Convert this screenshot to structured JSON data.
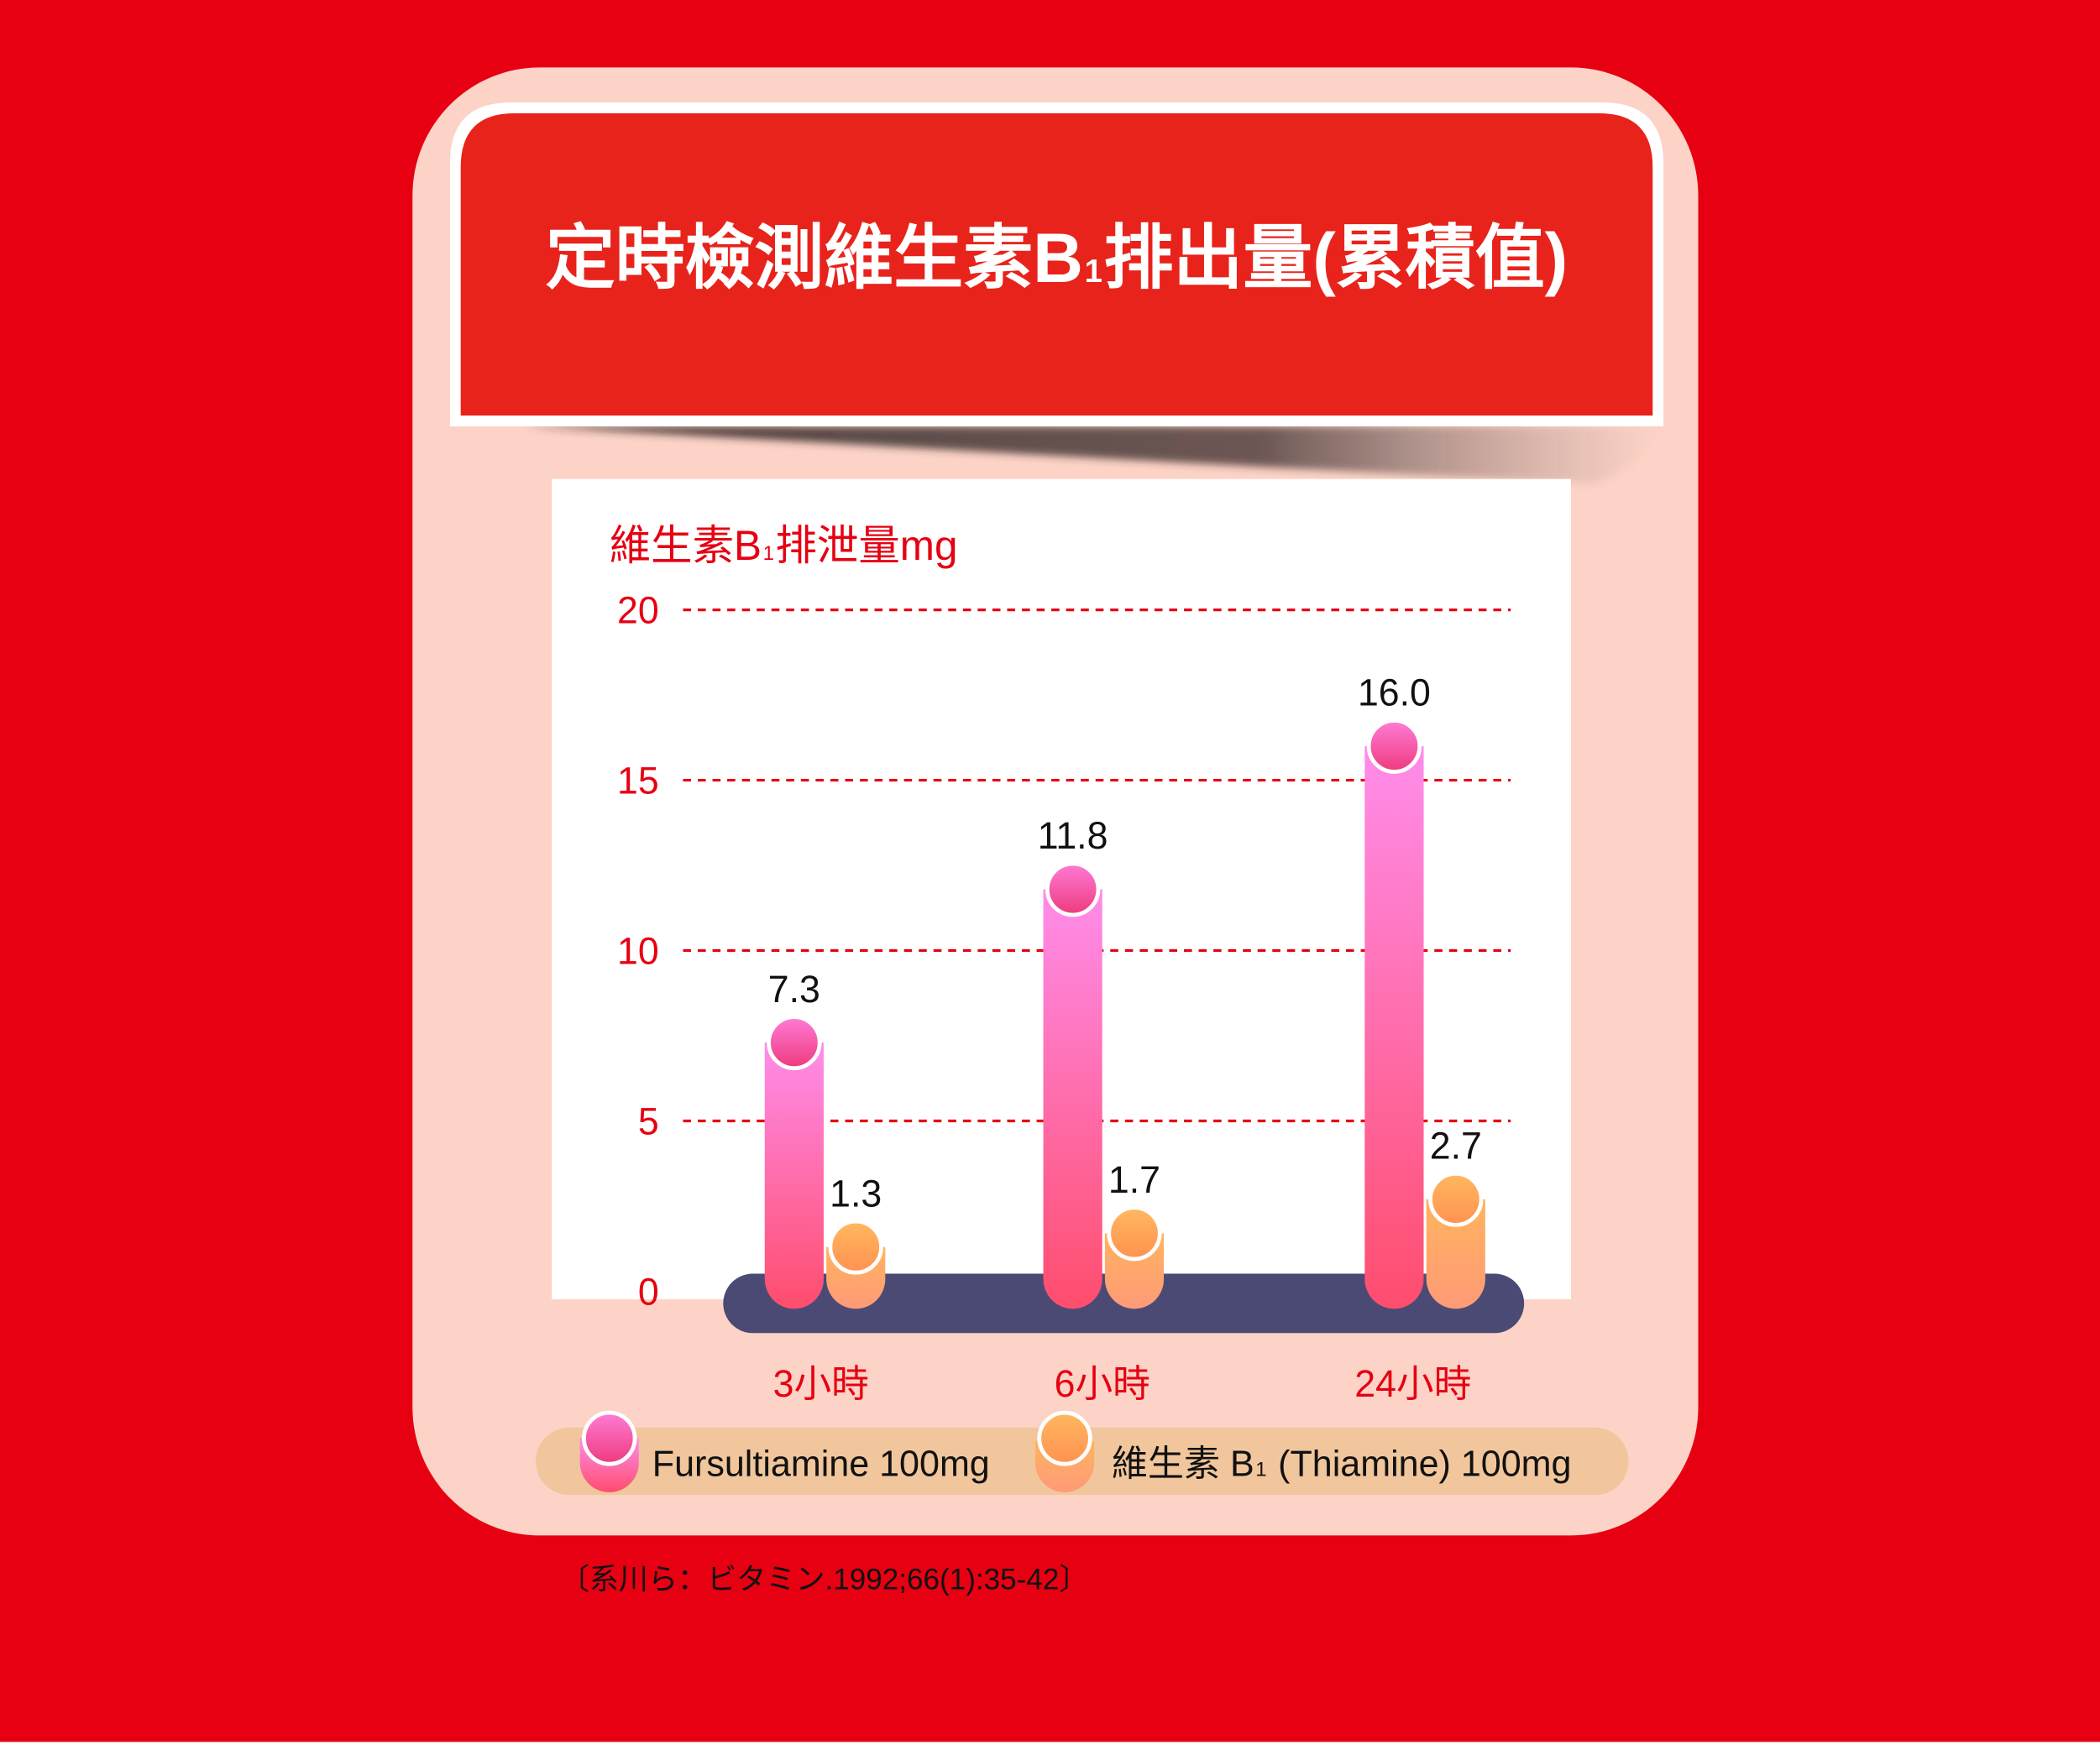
{
  "colors": {
    "background": "#E60012",
    "card": "#FCD3C6",
    "banner": "#E8231B",
    "banner_border": "#FFFFFF",
    "chart_area": "#FFFFFF",
    "base_platform": "#4B4A74",
    "legend_pill": "#F1C69C"
  },
  "chart_data": {
    "type": "bar",
    "title": "定時檢測維生素B1排出量(累積值)",
    "ylabel": "維生素B1排泄量mg",
    "categories": [
      "3小時",
      "6小時",
      "24小時"
    ],
    "ylim": [
      0,
      20
    ],
    "yticks": [
      0,
      5,
      10,
      15,
      20
    ],
    "grid": true,
    "legend": "bottom",
    "series": [
      {
        "name": "Fursultiamine 100mg",
        "values": [
          7.3,
          11.8,
          16.0
        ],
        "labels": [
          "7.3",
          "11.8",
          "16.0"
        ],
        "color": "#FF4D6D",
        "color_light": "#FF8DEB"
      },
      {
        "name": "維生素 B1 (Thiamine) 100mg",
        "values": [
          1.3,
          1.7,
          2.7
        ],
        "labels": [
          "1.3",
          "1.7",
          "2.7"
        ],
        "color": "#FF9A78",
        "color_light": "#FFB45E"
      }
    ]
  },
  "source_note": "〔系川ら：ビタミン.1992;66(1):35-42〕"
}
